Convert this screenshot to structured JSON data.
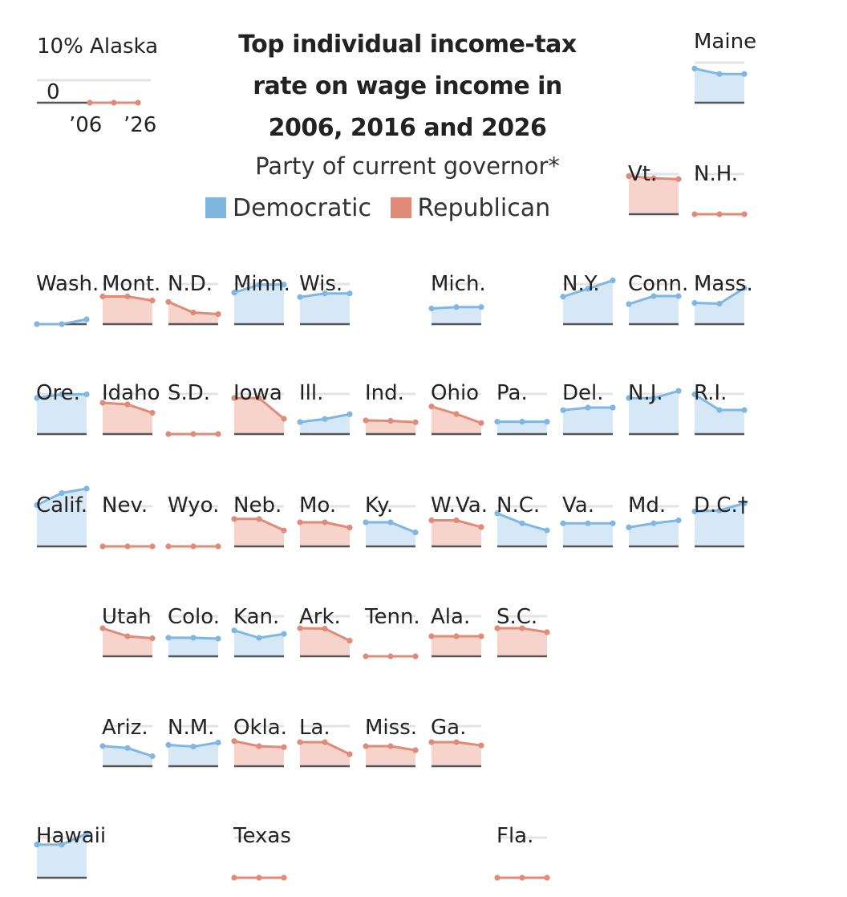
{
  "chart_data": {
    "type": "area",
    "title": "Top individual income-tax rate on wage income in 2006, 2016 and 2026",
    "title_lines": [
      "Top individual income-tax",
      "rate on wage income in",
      "2006, 2016 and 2026"
    ],
    "legend_title": "Party of current governor*",
    "legend": [
      {
        "label": "Democratic",
        "color": "#7fb6e2"
      },
      {
        "label": "Republican",
        "color": "#e08a78"
      }
    ],
    "x": [
      "2006",
      "2016",
      "2026"
    ],
    "ylim": [
      0,
      10
    ],
    "key": {
      "state": "Alaska",
      "y_top_label": "10%",
      "y_zero_label": "0",
      "x_labels": [
        "’06",
        "’26"
      ]
    },
    "colors": {
      "dem_line": "#7fb6e2",
      "dem_fill": "#d6e7f6",
      "rep_line": "#e08a78",
      "rep_fill": "#f6d4cc",
      "baseline": "#555555",
      "gridline": "#e3e3e3",
      "label": "#222222"
    },
    "series": [
      {
        "name": "Maine",
        "party": "D",
        "values": [
          8.5,
          7.15,
          7.15
        ]
      },
      {
        "name": "Vt.",
        "party": "R",
        "values": [
          9.5,
          8.95,
          8.75
        ]
      },
      {
        "name": "N.H.",
        "party": "R",
        "values": [
          0,
          0,
          0
        ]
      },
      {
        "name": "Wash.",
        "party": "D",
        "values": [
          0,
          0,
          1.2
        ]
      },
      {
        "name": "Mont.",
        "party": "R",
        "values": [
          6.9,
          6.9,
          5.9
        ]
      },
      {
        "name": "N.D.",
        "party": "R",
        "values": [
          5.54,
          2.9,
          2.5
        ]
      },
      {
        "name": "Minn.",
        "party": "D",
        "values": [
          7.85,
          9.85,
          9.85
        ]
      },
      {
        "name": "Wis.",
        "party": "D",
        "values": [
          6.75,
          7.65,
          7.65
        ]
      },
      {
        "name": "Mich.",
        "party": "D",
        "values": [
          3.9,
          4.25,
          4.25
        ]
      },
      {
        "name": "N.Y.",
        "party": "D",
        "values": [
          6.85,
          8.82,
          10.9
        ]
      },
      {
        "name": "Conn.",
        "party": "D",
        "values": [
          5.0,
          6.99,
          6.99
        ]
      },
      {
        "name": "Mass.",
        "party": "D",
        "values": [
          5.3,
          5.1,
          9.0
        ]
      },
      {
        "name": "Ore.",
        "party": "D",
        "values": [
          9.0,
          9.9,
          9.9
        ]
      },
      {
        "name": "Idaho",
        "party": "R",
        "values": [
          7.8,
          7.4,
          5.3
        ]
      },
      {
        "name": "S.D.",
        "party": "R",
        "values": [
          0,
          0,
          0
        ]
      },
      {
        "name": "Iowa",
        "party": "R",
        "values": [
          8.98,
          8.98,
          3.8
        ]
      },
      {
        "name": "Ill.",
        "party": "D",
        "values": [
          3.0,
          3.75,
          4.95
        ]
      },
      {
        "name": "Ind.",
        "party": "R",
        "values": [
          3.4,
          3.3,
          2.95
        ]
      },
      {
        "name": "Ohio",
        "party": "R",
        "values": [
          6.87,
          5.0,
          2.75
        ]
      },
      {
        "name": "Pa.",
        "party": "D",
        "values": [
          3.07,
          3.07,
          3.07
        ]
      },
      {
        "name": "Del.",
        "party": "D",
        "values": [
          5.95,
          6.6,
          6.6
        ]
      },
      {
        "name": "N.J.",
        "party": "D",
        "values": [
          8.97,
          8.97,
          10.75
        ]
      },
      {
        "name": "R.I.",
        "party": "D",
        "values": [
          9.9,
          5.99,
          5.99
        ]
      },
      {
        "name": "Calif.",
        "party": "D",
        "values": [
          10.3,
          13.3,
          14.4
        ]
      },
      {
        "name": "Nev.",
        "party": "R",
        "values": [
          0,
          0,
          0
        ]
      },
      {
        "name": "Wyo.",
        "party": "R",
        "values": [
          0,
          0,
          0
        ]
      },
      {
        "name": "Neb.",
        "party": "R",
        "values": [
          6.84,
          6.84,
          3.99
        ]
      },
      {
        "name": "Mo.",
        "party": "R",
        "values": [
          6.0,
          6.0,
          4.7
        ]
      },
      {
        "name": "Ky.",
        "party": "D",
        "values": [
          6.0,
          6.0,
          3.5
        ]
      },
      {
        "name": "W.Va.",
        "party": "R",
        "values": [
          6.5,
          6.5,
          4.82
        ]
      },
      {
        "name": "N.C.",
        "party": "D",
        "values": [
          8.25,
          5.75,
          3.99
        ]
      },
      {
        "name": "Va.",
        "party": "D",
        "values": [
          5.75,
          5.75,
          5.75
        ]
      },
      {
        "name": "Md.",
        "party": "D",
        "values": [
          4.75,
          5.75,
          6.5
        ]
      },
      {
        "name": "D.C.†",
        "party": "D",
        "values": [
          8.7,
          8.95,
          10.75
        ]
      },
      {
        "name": "Utah",
        "party": "R",
        "values": [
          7.0,
          5.0,
          4.5
        ]
      },
      {
        "name": "Colo.",
        "party": "D",
        "values": [
          4.63,
          4.63,
          4.4
        ]
      },
      {
        "name": "Kan.",
        "party": "D",
        "values": [
          6.45,
          4.6,
          5.58
        ]
      },
      {
        "name": "Ark.",
        "party": "R",
        "values": [
          7.0,
          6.9,
          3.9
        ]
      },
      {
        "name": "Tenn.",
        "party": "R",
        "values": [
          0,
          0,
          0
        ]
      },
      {
        "name": "Ala.",
        "party": "R",
        "values": [
          5.0,
          5.0,
          5.0
        ]
      },
      {
        "name": "S.C.",
        "party": "R",
        "values": [
          7.0,
          7.0,
          6.0
        ]
      },
      {
        "name": "Ariz.",
        "party": "D",
        "values": [
          5.04,
          4.54,
          2.5
        ]
      },
      {
        "name": "N.M.",
        "party": "D",
        "values": [
          5.3,
          4.9,
          5.9
        ]
      },
      {
        "name": "Okla.",
        "party": "R",
        "values": [
          6.25,
          5.0,
          4.75
        ]
      },
      {
        "name": "La.",
        "party": "R",
        "values": [
          6.0,
          6.0,
          3.0
        ]
      },
      {
        "name": "Miss.",
        "party": "R",
        "values": [
          5.0,
          5.0,
          4.0
        ]
      },
      {
        "name": "Ga.",
        "party": "R",
        "values": [
          6.0,
          6.0,
          5.19
        ]
      },
      {
        "name": "Hawaii",
        "party": "D",
        "values": [
          8.25,
          8.25,
          11.0
        ]
      },
      {
        "name": "Texas",
        "party": "R",
        "values": [
          0,
          0,
          0
        ]
      },
      {
        "name": "Fla.",
        "party": "R",
        "values": [
          0,
          0,
          0
        ]
      }
    ]
  }
}
